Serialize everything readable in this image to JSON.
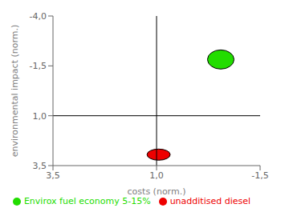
{
  "chart_data": {
    "type": "scatter",
    "xlabel": "costs (norm.)",
    "ylabel": "environmental impact (norm.)",
    "xlim": [
      3.5,
      -1.5
    ],
    "ylim": [
      3.5,
      -4.0
    ],
    "xticks": [
      {
        "value": 3.5,
        "label": "3,5"
      },
      {
        "value": 1.0,
        "label": "1,0"
      },
      {
        "value": -1.5,
        "label": "-1,5"
      }
    ],
    "yticks": [
      {
        "value": -4.0,
        "label": "-4,0"
      },
      {
        "value": -1.5,
        "label": "-1,5"
      },
      {
        "value": 1.0,
        "label": "1,0"
      },
      {
        "value": 3.5,
        "label": "3,5"
      }
    ],
    "x_line": 1.0,
    "y_line": 1.0,
    "legend": "bottom",
    "series": [
      {
        "name": "Envirox fuel economy 5-15%",
        "color": "#22dd00",
        "x": [
          -0.55
        ],
        "y": [
          -1.82
        ],
        "rx": [
          0.32
        ],
        "ry": [
          0.48
        ]
      },
      {
        "name": "unadditised diesel",
        "color": "#ee0000",
        "x": [
          0.95
        ],
        "y": [
          2.95
        ],
        "rx": [
          0.28
        ],
        "ry": [
          0.28
        ]
      }
    ]
  }
}
